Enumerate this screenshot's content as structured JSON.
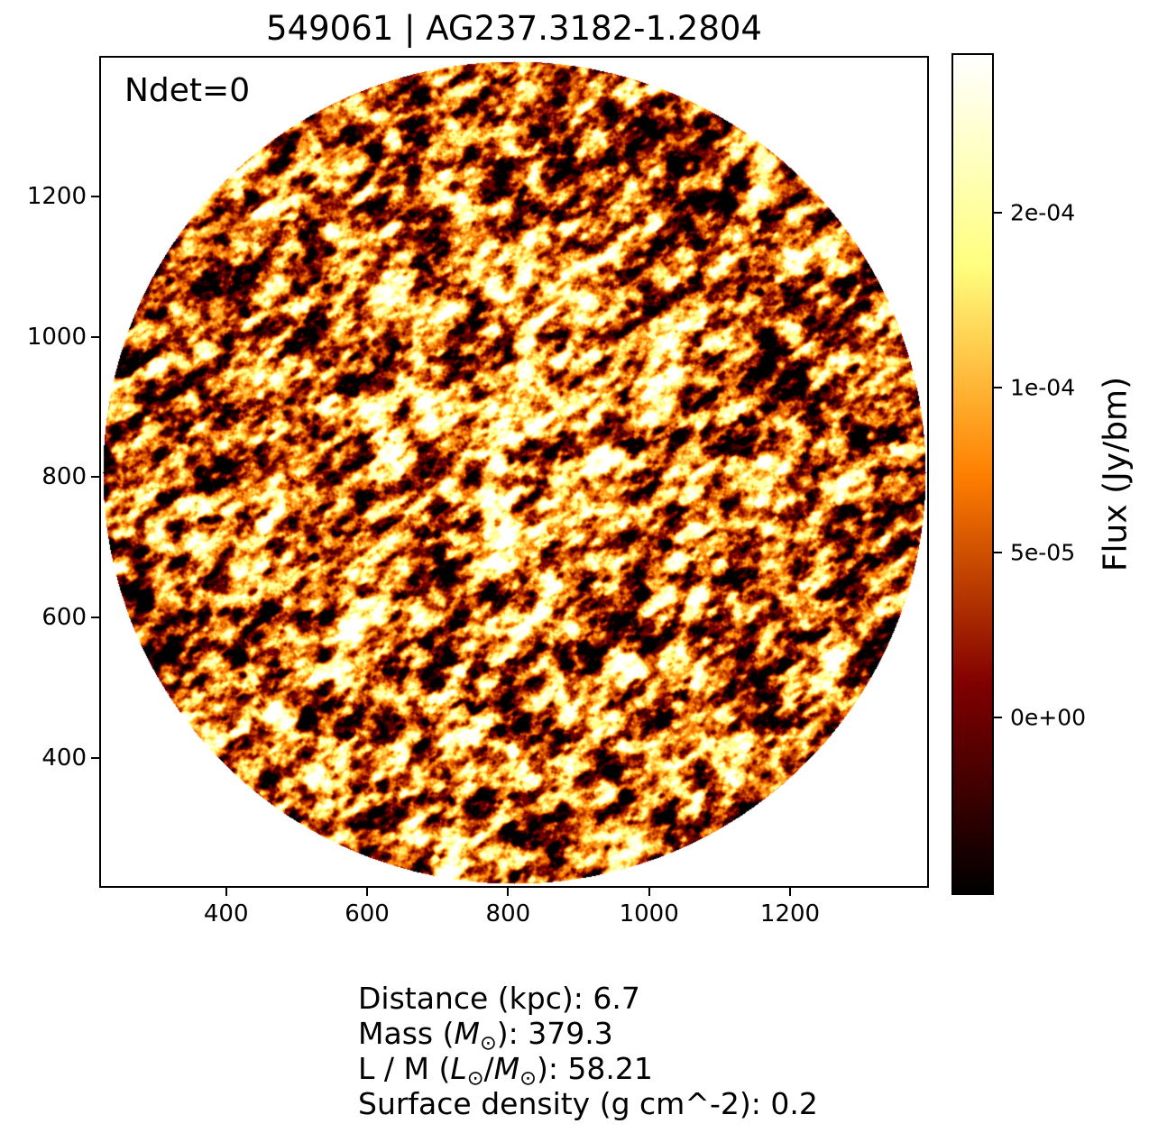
{
  "figure": {
    "background_color": "#ffffff",
    "text_color": "#000000"
  },
  "chart_data": {
    "type": "heatmap",
    "title": "549061 | AG237.3182-1.2804",
    "annotation": "Ndet=0",
    "xlabel": "",
    "ylabel": "",
    "x_ticks": [
      400,
      600,
      800,
      1000,
      1200
    ],
    "y_ticks": [
      400,
      600,
      800,
      1000,
      1200
    ],
    "x_range": [
      220,
      1397
    ],
    "y_range": [
      215,
      1400
    ],
    "grid": false,
    "legend": "none",
    "image": {
      "content": "circular-masked interferometric noise map",
      "mask_shape": "circle",
      "outside_mask_color": "#ffffff",
      "colormap": "afmhot",
      "colormap_stops": [
        {
          "pos": 0.0,
          "color": "#000000"
        },
        {
          "pos": 0.25,
          "color": "#800000"
        },
        {
          "pos": 0.5,
          "color": "#ff8000"
        },
        {
          "pos": 0.75,
          "color": "#ffff80"
        },
        {
          "pos": 1.0,
          "color": "#ffffff"
        }
      ],
      "noise_seed": 549061,
      "streak_angle_deg": -34,
      "center_brightening": true
    },
    "colorbar": {
      "label": "Flux (Jy/bm)",
      "ticks": [
        {
          "label": "2e-04",
          "frac_from_top": 0.19
        },
        {
          "label": "1e-04",
          "frac_from_top": 0.397
        },
        {
          "label": "5e-05",
          "frac_from_top": 0.593
        },
        {
          "label": "0e+00",
          "frac_from_top": 0.789
        }
      ]
    }
  },
  "info_lines": [
    "Distance (kpc): 6.7",
    "Mass (M⊙): 379.3",
    "L / M (L⊙/M⊙): 58.21",
    "Surface density (g cm^-2): 0.2"
  ]
}
